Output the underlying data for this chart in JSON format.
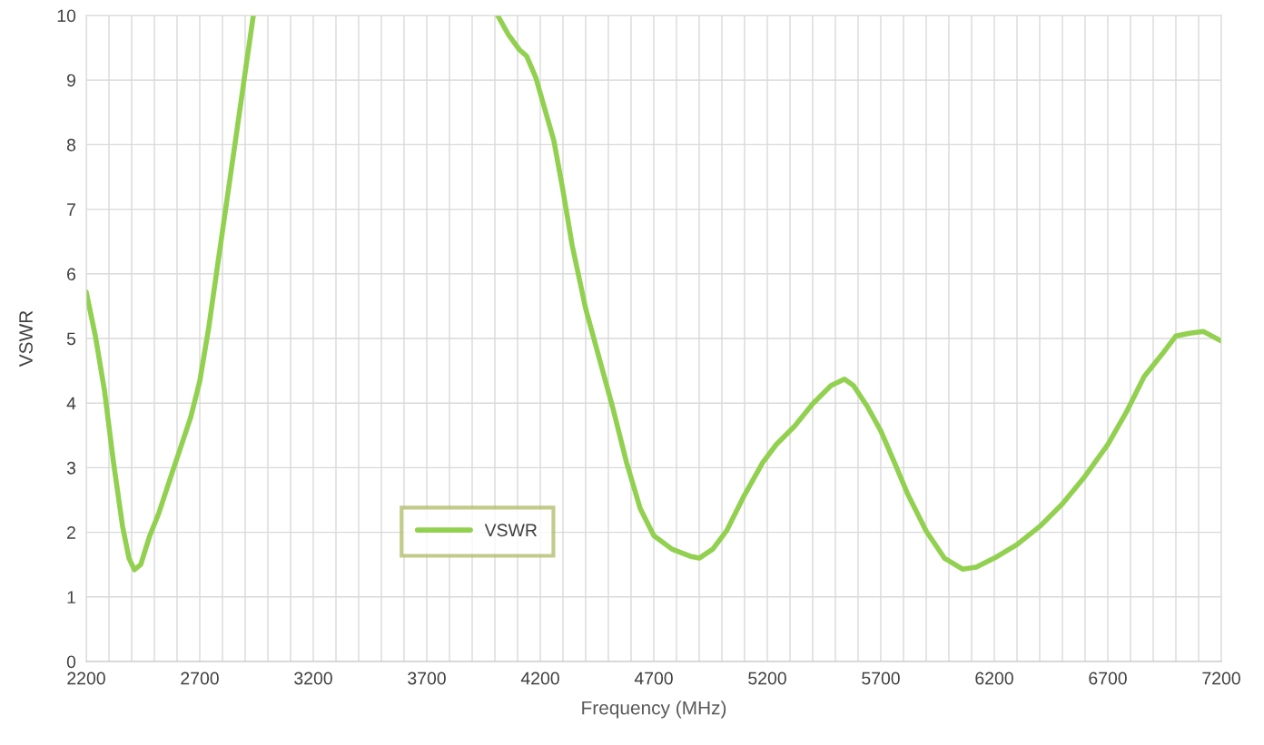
{
  "chart_data": {
    "type": "line",
    "xlabel": "Frequency (MHz)",
    "ylabel": "VSWR",
    "x": [
      2200,
      2240,
      2280,
      2320,
      2360,
      2388,
      2412,
      2440,
      2480,
      2520,
      2580,
      2620,
      2660,
      2700,
      2740,
      2780,
      2820,
      2860,
      2900,
      2936,
      3500,
      4012,
      4060,
      4108,
      4140,
      4180,
      4220,
      4260,
      4300,
      4340,
      4400,
      4460,
      4520,
      4580,
      4640,
      4700,
      4780,
      4860,
      4900,
      4960,
      5020,
      5100,
      5180,
      5240,
      5320,
      5400,
      5480,
      5540,
      5580,
      5640,
      5700,
      5760,
      5820,
      5900,
      5980,
      6060,
      6120,
      6200,
      6300,
      6400,
      6500,
      6600,
      6700,
      6780,
      6860,
      6940,
      7000,
      7060,
      7120,
      7200
    ],
    "series": [
      {
        "name": "VSWR",
        "color": "#92d050",
        "values": [
          5.72,
          5.04,
          4.2,
          3.08,
          2.09,
          1.6,
          1.42,
          1.5,
          1.95,
          2.3,
          2.94,
          3.36,
          3.78,
          4.34,
          5.18,
          6.17,
          7.15,
          8.13,
          9.12,
          10,
          null,
          10,
          9.7,
          9.47,
          9.37,
          9.04,
          8.55,
          8.06,
          7.29,
          6.45,
          5.46,
          4.69,
          3.92,
          3.08,
          2.37,
          1.95,
          1.74,
          1.63,
          1.6,
          1.74,
          2.02,
          2.58,
          3.08,
          3.36,
          3.64,
          3.99,
          4.27,
          4.37,
          4.27,
          3.95,
          3.57,
          3.08,
          2.58,
          2.02,
          1.6,
          1.43,
          1.46,
          1.6,
          1.81,
          2.09,
          2.44,
          2.87,
          3.36,
          3.85,
          4.41,
          4.76,
          5.04,
          5.08,
          5.11,
          4.96
        ]
      }
    ],
    "xlim": [
      2200,
      7200
    ],
    "xticks": [
      2200,
      {
        "value": 2300,
        "label": null
      },
      {
        "value": 2400,
        "label": null
      },
      {
        "value": 2500,
        "label": null
      },
      {
        "value": 2600,
        "label": null
      },
      2700,
      {
        "value": 2800,
        "label": null
      },
      {
        "value": 2900,
        "label": null
      },
      {
        "value": 3000,
        "label": null
      },
      {
        "value": 3100,
        "label": null
      },
      3200,
      {
        "value": 3300,
        "label": null
      },
      {
        "value": 3400,
        "label": null
      },
      {
        "value": 3500,
        "label": null
      },
      {
        "value": 3600,
        "label": null
      },
      3700,
      {
        "value": 3800,
        "label": null
      },
      {
        "value": 3900,
        "label": null
      },
      {
        "value": 4000,
        "label": null
      },
      {
        "value": 4100,
        "label": null
      },
      4200,
      {
        "value": 4300,
        "label": null
      },
      {
        "value": 4400,
        "label": null
      },
      {
        "value": 4500,
        "label": null
      },
      {
        "value": 4600,
        "label": null
      },
      4700,
      {
        "value": 4800,
        "label": null
      },
      {
        "value": 4900,
        "label": null
      },
      {
        "value": 5000,
        "label": null
      },
      {
        "value": 5100,
        "label": null
      },
      5200,
      {
        "value": 5300,
        "label": null
      },
      {
        "value": 5400,
        "label": null
      },
      {
        "value": 5500,
        "label": null
      },
      {
        "value": 5600,
        "label": null
      },
      5700,
      {
        "value": 5800,
        "label": null
      },
      {
        "value": 5900,
        "label": null
      },
      {
        "value": 6000,
        "label": null
      },
      {
        "value": 6100,
        "label": null
      },
      6200,
      {
        "value": 6300,
        "label": null
      },
      {
        "value": 6400,
        "label": null
      },
      {
        "value": 6500,
        "label": null
      },
      {
        "value": 6600,
        "label": null
      },
      6700,
      {
        "value": 6800,
        "label": null
      },
      {
        "value": 6900,
        "label": null
      },
      {
        "value": 7000,
        "label": null
      },
      {
        "value": 7100,
        "label": null
      },
      7200
    ],
    "ylim": [
      0,
      10
    ],
    "yticks": [
      0,
      1,
      2,
      3,
      4,
      5,
      6,
      7,
      8,
      9,
      10
    ],
    "grid": true,
    "legend": "bottom left",
    "marker": "none",
    "line_style": "solid"
  }
}
